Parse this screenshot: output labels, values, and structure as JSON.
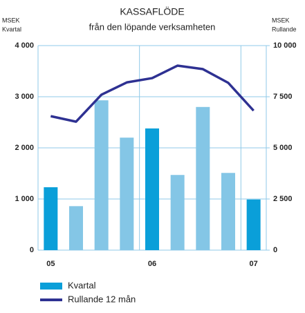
{
  "chart_data": {
    "type": "bar_line",
    "title": "KASSAFLÖDE",
    "subtitle": "från den löpande verksamheten",
    "ylabel": [
      "MSEK",
      "Kvartal"
    ],
    "y2label": [
      "MSEK",
      "Rullande"
    ],
    "categories": [
      "05",
      null,
      null,
      null,
      "06",
      null,
      null,
      null,
      "07"
    ],
    "series": [
      {
        "name": "Kvartal",
        "type": "bar",
        "color": "#0a9fd9",
        "colors": [
          "#0a9fd9",
          "#84c6e6",
          "#84c6e6",
          "#84c6e6",
          "#0a9fd9",
          "#84c6e6",
          "#84c6e6",
          "#84c6e6",
          "#0a9fd9"
        ],
        "values": [
          1230,
          860,
          2930,
          2200,
          2380,
          1470,
          2800,
          1510,
          990
        ]
      },
      {
        "name": "Rullande 12 mån",
        "type": "line",
        "axis": "y2",
        "color": "#2e3192",
        "values": [
          6550,
          6280,
          7600,
          8200,
          8410,
          9020,
          8850,
          8180,
          6820
        ]
      }
    ],
    "ylim": [
      0,
      4000
    ],
    "yticks": [
      0,
      {
        "value": 1000,
        "label": "1 000"
      },
      {
        "value": 2000,
        "label": "2 000"
      },
      {
        "value": 3000,
        "label": "3 000"
      },
      {
        "value": 4000,
        "label": "4 000"
      }
    ],
    "y2lim": [
      0,
      10000
    ],
    "y2ticks": [
      0,
      {
        "value": 2500,
        "label": "2 500"
      },
      {
        "value": 5000,
        "label": "5 000"
      },
      {
        "value": 7500,
        "label": "7 500"
      },
      {
        "value": 10000,
        "label": "10 000"
      }
    ],
    "grid": true,
    "vgrid_after": [
      3,
      7
    ],
    "legend": "bottom-left"
  }
}
